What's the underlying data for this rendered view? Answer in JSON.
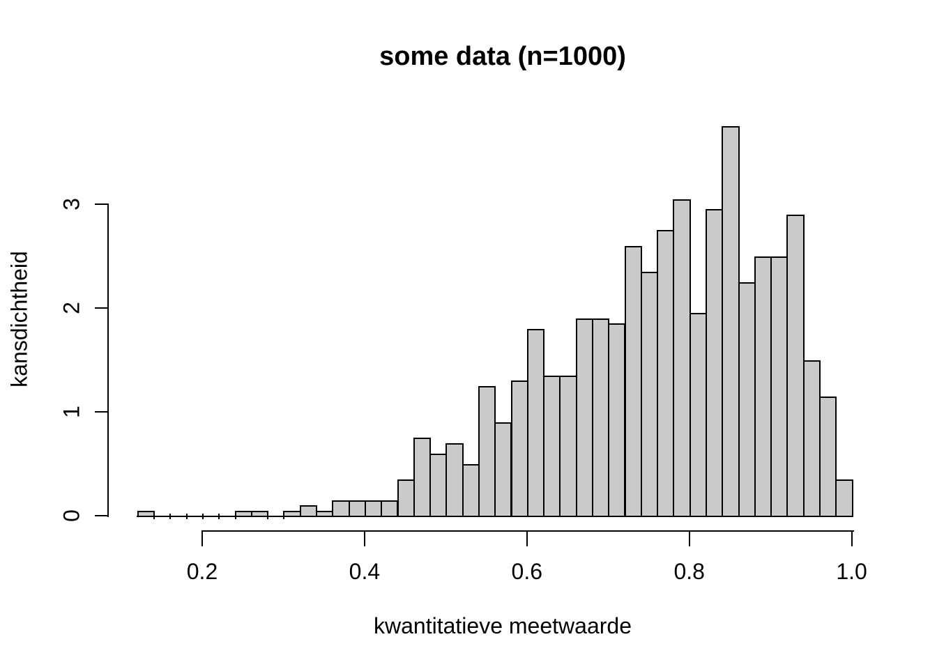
{
  "title": "some data (n=1000)",
  "chart_data": {
    "type": "bar",
    "subtype": "histogram",
    "title": "some data (n=1000)",
    "xlabel": "kwantitatieve meetwaarde",
    "ylabel": "kansdichtheid",
    "n": 1000,
    "bin_start": 0.12,
    "bin_width": 0.02,
    "densities": [
      0.05,
      0,
      0,
      0,
      0,
      0,
      0.05,
      0.05,
      0,
      0.05,
      0.1,
      0.05,
      0.15,
      0.15,
      0.15,
      0.15,
      0.35,
      0.75,
      0.6,
      0.7,
      0.5,
      1.25,
      0.9,
      1.3,
      1.8,
      1.35,
      1.35,
      1.9,
      1.9,
      1.85,
      2.6,
      2.35,
      2.75,
      3.05,
      1.95,
      2.95,
      3.75,
      2.25,
      2.5,
      2.5,
      2.9,
      1.5,
      1.15,
      0.35
    ],
    "x_ticks": [
      {
        "value": 0.2,
        "label": "0.2"
      },
      {
        "value": 0.4,
        "label": "0.4"
      },
      {
        "value": 0.6,
        "label": "0.6"
      },
      {
        "value": 0.8,
        "label": "0.8"
      },
      {
        "value": 1.0,
        "label": "1.0"
      }
    ],
    "y_ticks": [
      {
        "value": 0,
        "label": "0"
      },
      {
        "value": 1,
        "label": "1"
      },
      {
        "value": 2,
        "label": "2"
      },
      {
        "value": 3,
        "label": "3"
      }
    ],
    "xlim": [
      0.12,
      1.0
    ],
    "ylim": [
      0,
      3
    ],
    "grid": false,
    "legend": "none",
    "bar_fill": "#cbcbcb",
    "bar_border": "#000000",
    "axis_color": "#000000",
    "background": "#ffffff"
  }
}
